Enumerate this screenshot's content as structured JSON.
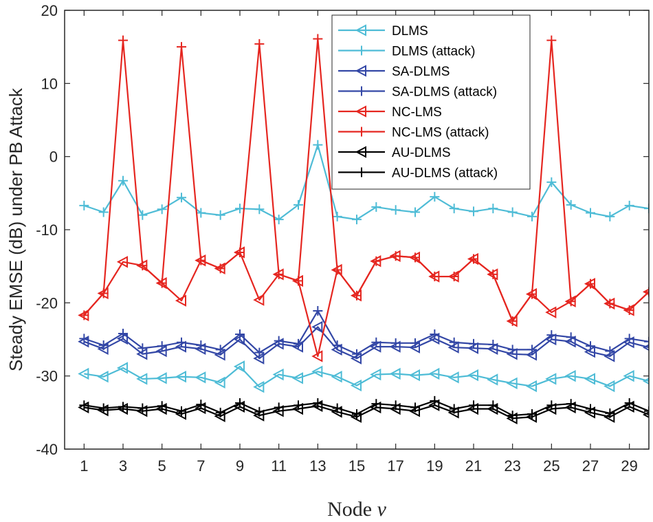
{
  "chart_data": {
    "type": "line",
    "title": "",
    "xlabel_prefix": "Node ",
    "xlabel_var": "v",
    "ylabel": "Steady EMSE (dB) under PB Attack",
    "xlim": [
      0,
      30
    ],
    "ylim": [
      -40,
      20
    ],
    "xticks": [
      1,
      3,
      5,
      7,
      9,
      11,
      13,
      15,
      17,
      19,
      21,
      23,
      25,
      27,
      29
    ],
    "yticks": [
      -40,
      -30,
      -20,
      -10,
      0,
      10,
      20
    ],
    "legend_position": "top-right",
    "x": [
      1,
      2,
      3,
      4,
      5,
      6,
      7,
      8,
      9,
      10,
      11,
      12,
      13,
      14,
      15,
      16,
      17,
      18,
      19,
      20,
      21,
      22,
      23,
      24,
      25,
      26,
      27,
      28,
      29,
      30
    ],
    "series": [
      {
        "name": "DLMS",
        "color": "#4ebcd6",
        "marker": "triangle-left",
        "values": [
          -29.7,
          -30.1,
          -28.9,
          -30.4,
          -30.3,
          -30.1,
          -30.2,
          -30.9,
          -28.7,
          -31.5,
          -29.8,
          -30.3,
          -29.4,
          -30.1,
          -31.3,
          -29.8,
          -29.7,
          -29.9,
          -29.7,
          -30.2,
          -29.9,
          -30.5,
          -31.0,
          -31.4,
          -30.4,
          -30.0,
          -30.4,
          -31.4,
          -30.0,
          -30.7
        ]
      },
      {
        "name": "DLMS (attack)",
        "color": "#4ebcd6",
        "marker": "plus",
        "values": [
          -6.7,
          -7.6,
          -3.3,
          -8.0,
          -7.2,
          -5.6,
          -7.7,
          -8.0,
          -7.1,
          -7.2,
          -8.6,
          -6.6,
          1.6,
          -8.2,
          -8.6,
          -6.9,
          -7.3,
          -7.6,
          -5.5,
          -7.1,
          -7.5,
          -7.1,
          -7.6,
          -8.2,
          -3.5,
          -6.6,
          -7.7,
          -8.2,
          -6.7,
          -7.1
        ]
      },
      {
        "name": "SA-DLMS",
        "color": "#3347a6",
        "marker": "triangle-left",
        "values": [
          -25.3,
          -26.3,
          -24.9,
          -27.0,
          -26.6,
          -26.0,
          -26.3,
          -27.1,
          -25.0,
          -27.6,
          -25.6,
          -26.0,
          -23.3,
          -26.4,
          -27.6,
          -26.0,
          -26.0,
          -26.1,
          -24.9,
          -26.1,
          -26.2,
          -26.3,
          -27.0,
          -27.1,
          -25.0,
          -25.3,
          -26.7,
          -27.3,
          -25.4,
          -26.1
        ]
      },
      {
        "name": "SA-DLMS (attack)",
        "color": "#3347a6",
        "marker": "plus",
        "values": [
          -24.9,
          -25.8,
          -24.2,
          -26.2,
          -25.9,
          -25.4,
          -25.8,
          -26.4,
          -24.3,
          -26.8,
          -25.2,
          -25.6,
          -21.1,
          -25.8,
          -27.0,
          -25.4,
          -25.5,
          -25.5,
          -24.3,
          -25.4,
          -25.6,
          -25.7,
          -26.4,
          -26.4,
          -24.4,
          -24.7,
          -25.9,
          -26.6,
          -24.9,
          -25.3
        ]
      },
      {
        "name": "NC-LMS",
        "color": "#e52620",
        "marker": "triangle-left",
        "values": [
          -21.7,
          -18.7,
          -14.4,
          -14.9,
          -17.3,
          -19.7,
          -14.2,
          -15.3,
          -13.1,
          -19.6,
          -16.1,
          -17.0,
          -27.3,
          -15.5,
          -19.0,
          -14.3,
          -13.6,
          -13.8,
          -16.4,
          -16.4,
          -14.0,
          -16.1,
          -22.5,
          -18.8,
          -21.3,
          -19.8,
          -17.4,
          -20.1,
          -21.0,
          -18.5
        ]
      },
      {
        "name": "NC-LMS (attack)",
        "color": "#e52620",
        "marker": "plus",
        "values": [
          -21.7,
          -18.7,
          15.9,
          -14.9,
          -17.3,
          15.0,
          -14.2,
          -15.3,
          -13.1,
          15.4,
          -16.1,
          -17.0,
          16.1,
          -15.5,
          -19.0,
          -14.3,
          -13.6,
          -13.8,
          -16.4,
          -16.4,
          -14.0,
          -16.1,
          -22.5,
          -18.8,
          15.9,
          -19.8,
          -17.4,
          -20.1,
          -21.0,
          -18.5
        ]
      },
      {
        "name": "AU-DLMS",
        "color": "#000000",
        "marker": "triangle-left",
        "values": [
          -34.3,
          -34.7,
          -34.5,
          -34.8,
          -34.5,
          -35.2,
          -34.4,
          -35.5,
          -34.2,
          -35.4,
          -34.8,
          -34.5,
          -34.1,
          -34.9,
          -35.6,
          -34.3,
          -34.5,
          -34.8,
          -34.0,
          -35.0,
          -34.5,
          -34.5,
          -35.8,
          -35.6,
          -34.5,
          -34.3,
          -35.0,
          -35.6,
          -34.2,
          -35.3
        ]
      },
      {
        "name": "AU-DLMS (attack)",
        "color": "#000000",
        "marker": "plus",
        "values": [
          -34.0,
          -34.4,
          -34.2,
          -34.4,
          -34.1,
          -34.8,
          -33.9,
          -35.0,
          -33.7,
          -34.9,
          -34.3,
          -34.0,
          -33.7,
          -34.4,
          -35.2,
          -33.8,
          -34.0,
          -34.3,
          -33.4,
          -34.5,
          -34.0,
          -34.0,
          -35.4,
          -35.2,
          -34.0,
          -33.8,
          -34.5,
          -35.1,
          -33.7,
          -34.8
        ]
      }
    ]
  }
}
